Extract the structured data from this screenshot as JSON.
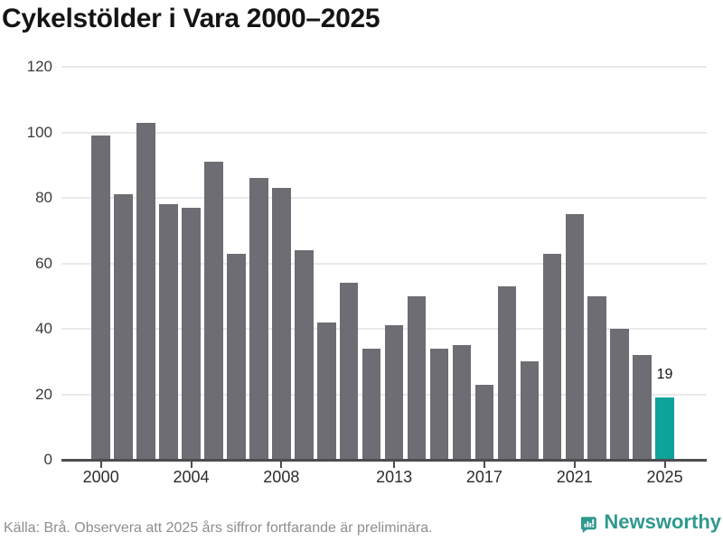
{
  "title": "Cykelstölder i Vara 2000–2025",
  "footer": {
    "source_note": "Källa: Brå. Observera att 2025 års siffror fortfarande är preliminära."
  },
  "branding": {
    "logo_text": "Newsworthy",
    "logo_icon": "newsworthy-speech-bubble-chart-icon",
    "logo_color": "#2f998f"
  },
  "colors": {
    "bar_default": "#6e6d73",
    "bar_highlight": "#0da398",
    "gridline": "#e9e9eb",
    "axis": "#4c4c51",
    "title_text": "#141414",
    "footer_text": "#8e8e90"
  },
  "chart_data": {
    "type": "bar",
    "title": "Cykelstölder i Vara 2000–2025",
    "xlabel": "",
    "ylabel": "",
    "x": [
      2000,
      2001,
      2002,
      2003,
      2004,
      2005,
      2006,
      2007,
      2008,
      2009,
      2010,
      2011,
      2012,
      2013,
      2014,
      2015,
      2016,
      2017,
      2018,
      2019,
      2020,
      2021,
      2022,
      2023,
      2024,
      2025
    ],
    "values": [
      99,
      81,
      103,
      78,
      77,
      91,
      63,
      86,
      83,
      64,
      42,
      54,
      34,
      41,
      50,
      34,
      35,
      23,
      53,
      30,
      63,
      75,
      50,
      40,
      32,
      19
    ],
    "ylim": [
      0,
      120
    ],
    "yticks": [
      0,
      20,
      40,
      60,
      80,
      100,
      120
    ],
    "xticks": [
      2000,
      2004,
      2008,
      2013,
      2017,
      2021,
      2025
    ],
    "grid": true,
    "legend": "none",
    "highlight_year": 2025,
    "highlight_value_label": "19"
  }
}
